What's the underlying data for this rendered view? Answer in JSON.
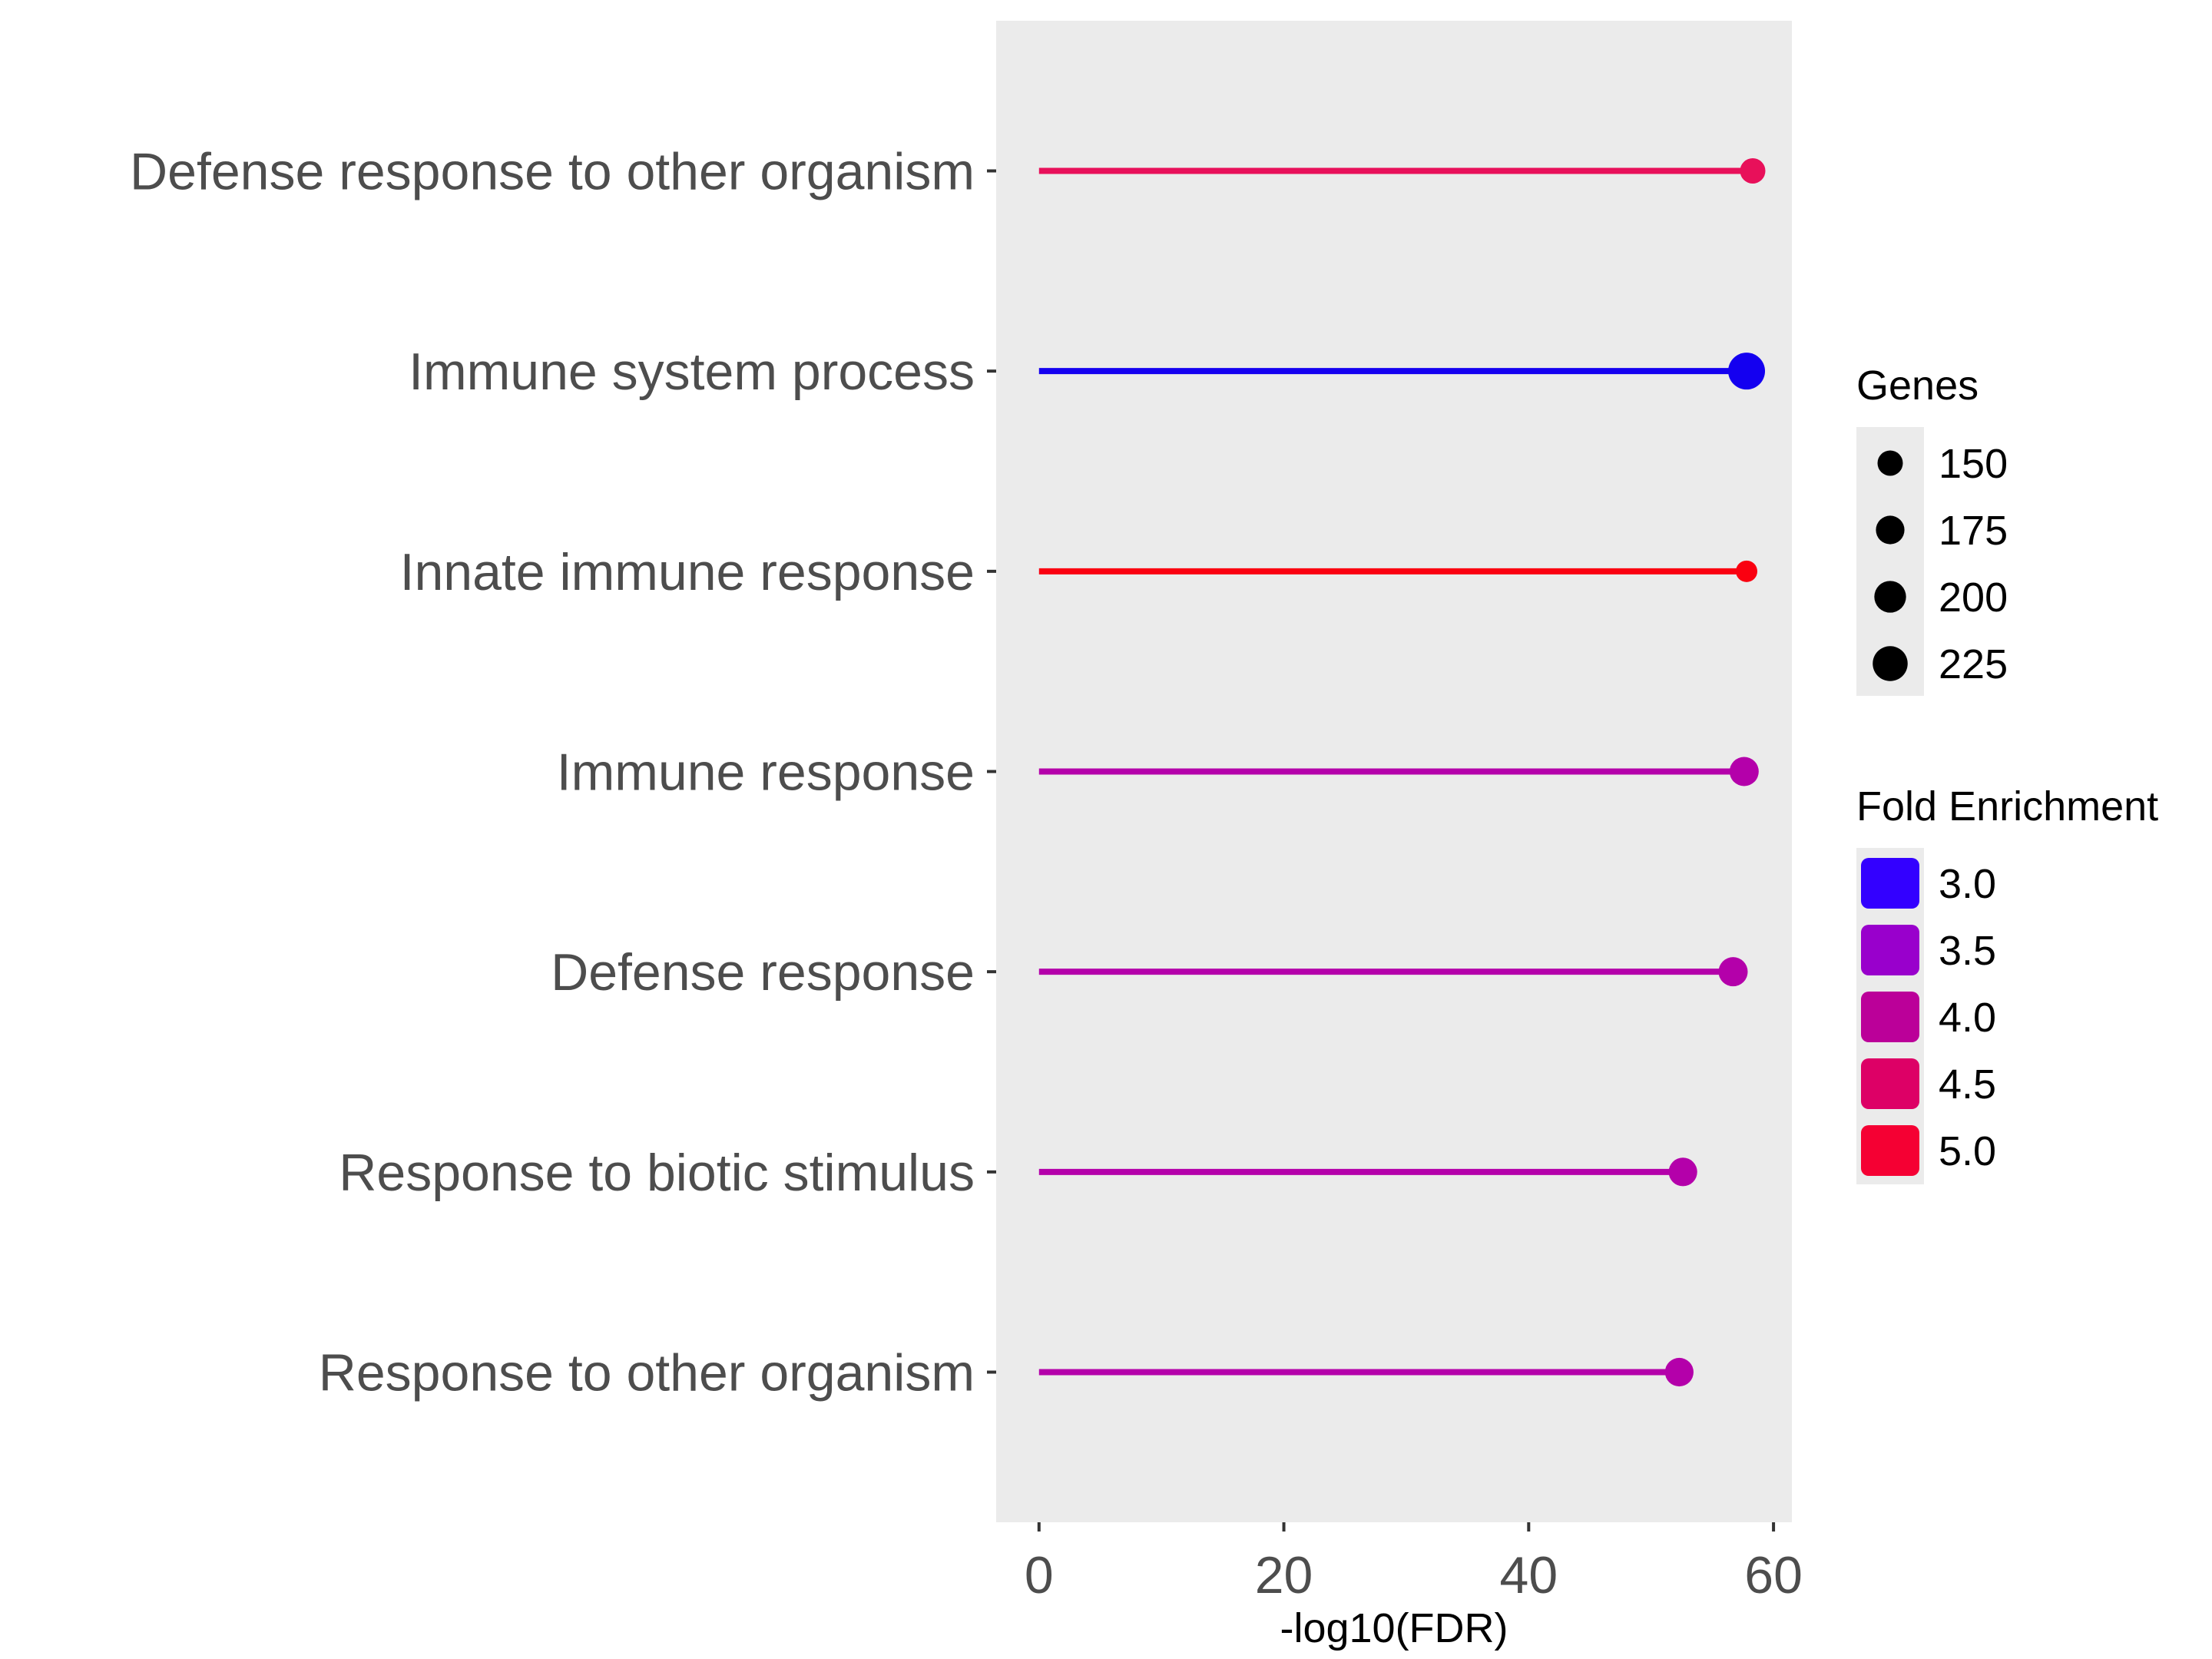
{
  "chart_data": {
    "type": "lollipop",
    "xlabel": "-log10(FDR)",
    "xlim": [
      -3.5,
      61.5
    ],
    "x_ticks": [
      0,
      20,
      40,
      60
    ],
    "grid": false,
    "background": "#ebebeb",
    "categories": [
      "Defense response to other organism",
      "Immune system process",
      "Innate immune response",
      "Immune response",
      "Defense response",
      "Response to biotic stimulus",
      "Response to other organism"
    ],
    "points": [
      {
        "term": "Defense response to other organism",
        "neg_log10_fdr": 58.3,
        "genes": 150,
        "fold_enrichment": 4.6,
        "color": "#e8105a"
      },
      {
        "term": "Immune system process",
        "neg_log10_fdr": 57.8,
        "genes": 240,
        "fold_enrichment": 2.8,
        "color": "#1400f0"
      },
      {
        "term": "Innate immune response",
        "neg_log10_fdr": 57.8,
        "genes": 120,
        "fold_enrichment": 5.0,
        "color": "#fa0010"
      },
      {
        "term": "Immune response",
        "neg_log10_fdr": 57.6,
        "genes": 180,
        "fold_enrichment": 3.9,
        "color": "#b400aa"
      },
      {
        "term": "Defense response",
        "neg_log10_fdr": 56.7,
        "genes": 180,
        "fold_enrichment": 3.9,
        "color": "#b400aa"
      },
      {
        "term": "Response to biotic stimulus",
        "neg_log10_fdr": 52.6,
        "genes": 175,
        "fold_enrichment": 3.9,
        "color": "#b400aa"
      },
      {
        "term": "Response to other organism",
        "neg_log10_fdr": 52.3,
        "genes": 175,
        "fold_enrichment": 3.9,
        "color": "#b400aa"
      }
    ],
    "legend_size": {
      "title": "Genes",
      "entries": [
        {
          "label": "150",
          "genes": 150
        },
        {
          "label": "175",
          "genes": 175
        },
        {
          "label": "200",
          "genes": 200
        },
        {
          "label": "225",
          "genes": 225
        }
      ]
    },
    "legend_color": {
      "title": "Fold Enrichment",
      "entries": [
        {
          "label": "3.0",
          "color": "#3300ff"
        },
        {
          "label": "3.5",
          "color": "#9900cc"
        },
        {
          "label": "4.0",
          "color": "#bb0099"
        },
        {
          "label": "4.5",
          "color": "#dd0066"
        },
        {
          "label": "5.0",
          "color": "#f50033"
        }
      ]
    }
  }
}
